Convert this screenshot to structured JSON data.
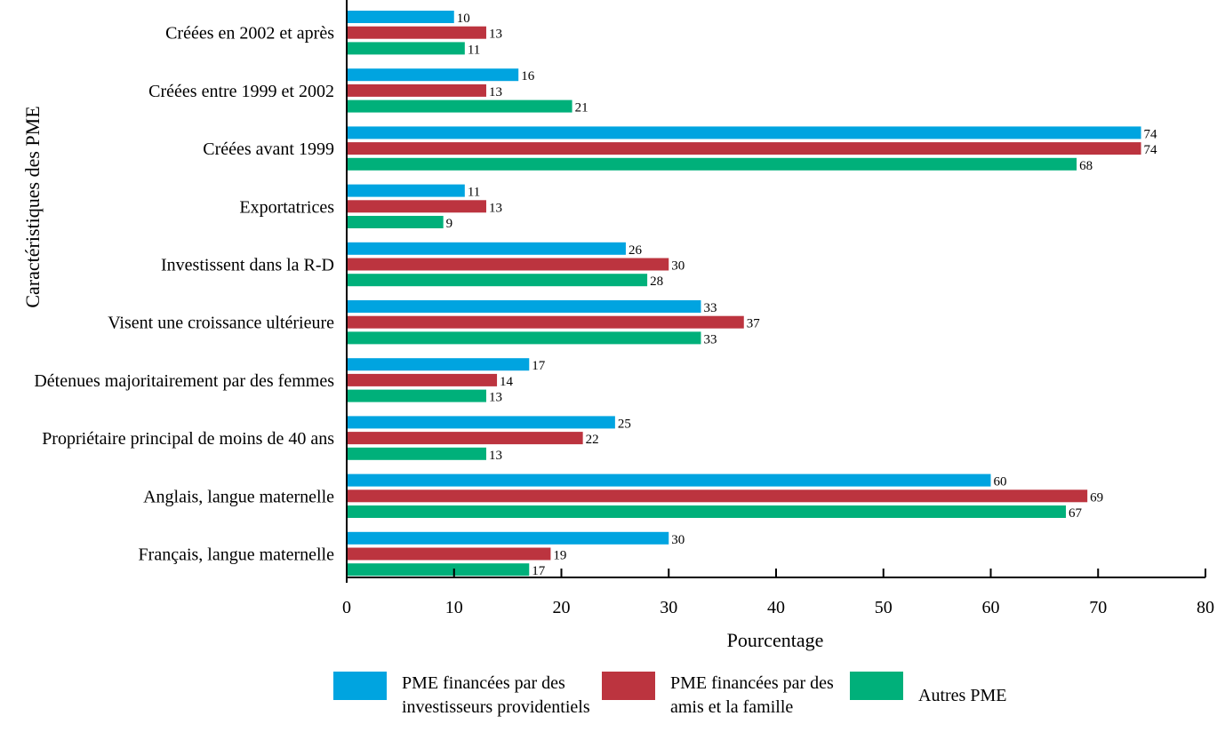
{
  "chart_data": {
    "type": "bar",
    "orientation": "horizontal",
    "ylabel": "Caractéristiques des PME",
    "xlabel": "Pourcentage",
    "xlim": [
      0,
      80
    ],
    "xticks": [
      0,
      10,
      20,
      30,
      40,
      50,
      60,
      70,
      80
    ],
    "categories": [
      "Créées en 2002 et après",
      "Créées entre 1999 et 2002",
      "Créées avant 1999",
      "Exportatrices",
      "Investissent dans la R-D",
      "Visent une croissance ultérieure",
      "Détenues majoritairement par des femmes",
      "Propriétaire principal de moins de 40 ans",
      "Anglais, langue maternelle",
      "Français, langue maternelle"
    ],
    "series": [
      {
        "name": "PME financées par des investisseurs providentiels",
        "color": "#00a4e0",
        "values": [
          10,
          16,
          74,
          11,
          26,
          33,
          17,
          25,
          60,
          30
        ]
      },
      {
        "name": "PME financées par des amis et la famille",
        "color": "#bc343f",
        "values": [
          13,
          13,
          74,
          13,
          30,
          37,
          14,
          22,
          69,
          19
        ]
      },
      {
        "name": "Autres PME",
        "color": "#00b07a",
        "values": [
          11,
          21,
          68,
          9,
          28,
          33,
          13,
          13,
          67,
          17
        ]
      }
    ],
    "grid": false,
    "legend_position": "bottom"
  },
  "legend": [
    {
      "text": "PME financées par des\ninvestisseurs providentiels",
      "color": "#00a4e0"
    },
    {
      "text": "PME financées par des\namis et la famille",
      "color": "#bc343f"
    },
    {
      "text": "Autres PME",
      "color": "#00b07a"
    }
  ]
}
